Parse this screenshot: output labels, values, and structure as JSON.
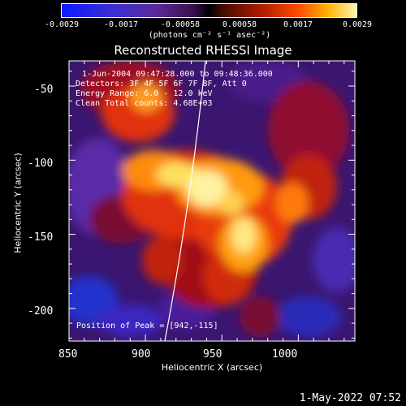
{
  "chart_data": {
    "type": "heatmap",
    "title": "Reconstructed RHESSI Image",
    "xlabel": "Heliocentric X (arcsec)",
    "ylabel": "Heliocentric Y (arcsec)",
    "xlim": [
      850,
      1037
    ],
    "ylim": [
      -222,
      -33
    ],
    "x_ticks": [
      850,
      900,
      950,
      1000
    ],
    "y_ticks": [
      -50,
      -100,
      -150,
      -200
    ],
    "colorbar": {
      "ticks": [
        "-0.0029",
        "-0.0017",
        "-0.00058",
        "0.00058",
        "0.0017",
        "0.0029"
      ],
      "tick_values": [
        -0.0029,
        -0.0017,
        -0.00058,
        0.00058,
        0.0017,
        0.0029
      ],
      "range": [
        -0.0029,
        0.0029
      ],
      "units": "(photons cm⁻² s⁻¹ asec⁻²)"
    },
    "annotations": {
      "time_range": "1-Jun-2004 09:47:28.000 to 09:48:36.000",
      "detectors": "Detectors: 3F 4F 5F 6F 7F 8F, Att 0",
      "energy": "Energy Range: 6.0 - 12.0 keV",
      "clean": "Clean    Total counts: 4.68E+03",
      "peak": "Position of Peak = [942,-115]"
    },
    "peak_position": [
      942,
      -115
    ],
    "total_counts": 4680,
    "energy_range_kev": [
      6.0,
      12.0
    ]
  },
  "timestamp": "1-May-2022 07:52"
}
